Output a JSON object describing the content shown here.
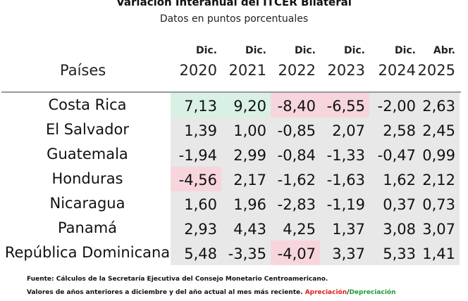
{
  "title": "Variación Interanual del ITCER Bilateral",
  "subtitle": "Datos en puntos porcentuales",
  "header": {
    "country_label": "Países",
    "columns": [
      {
        "month": "Dic.",
        "year": "2020"
      },
      {
        "month": "Dic.",
        "year": "2021"
      },
      {
        "month": "Dic.",
        "year": "2022"
      },
      {
        "month": "Dic.",
        "year": "2023"
      },
      {
        "month": "Dic.",
        "year": "2024"
      },
      {
        "month": "Abr.",
        "year": "2025"
      }
    ]
  },
  "rows": [
    {
      "country": "Costa Rica",
      "values": [
        "7,13",
        "9,20",
        "-8,40",
        "-6,55",
        "-2,00",
        "2,63"
      ]
    },
    {
      "country": "El Salvador",
      "values": [
        "1,39",
        "1,00",
        "-0,85",
        "2,07",
        "2,58",
        "2,45"
      ]
    },
    {
      "country": "Guatemala",
      "values": [
        "-1,94",
        "2,99",
        "-0,84",
        "-1,33",
        "-0,47",
        "0,99"
      ]
    },
    {
      "country": "Honduras",
      "values": [
        "-4,56",
        "2,17",
        "-1,62",
        "-1,63",
        "1,62",
        "2,12"
      ]
    },
    {
      "country": "Nicaragua",
      "values": [
        "1,60",
        "1,96",
        "-2,83",
        "-1,19",
        "0,37",
        "0,73"
      ]
    },
    {
      "country": "Panamá",
      "values": [
        "2,93",
        "4,43",
        "4,25",
        "1,37",
        "3,08",
        "3,07"
      ]
    },
    {
      "country": "República Dominicana",
      "values": [
        "5,48",
        "-3,35",
        "-4,07",
        "3,37",
        "5,33",
        "1,41"
      ]
    }
  ],
  "footer": {
    "source": "Fuente: Cálculos de la Secretaría Ejecutiva del Consejo Monetario Centroamericano.",
    "note": "Valores de años anteriores a diciembre y del año actual al mes más reciente.",
    "appreciation": "Apreciación",
    "separator": "/",
    "depreciation": "Depreciación"
  },
  "colors": {
    "high_positive": "#d9f0e4",
    "negative": "#f6d6dc",
    "neutral": "#e8e8e8",
    "appreciation_text": "#d61f1f",
    "depreciation_text": "#1f9a3a"
  }
}
